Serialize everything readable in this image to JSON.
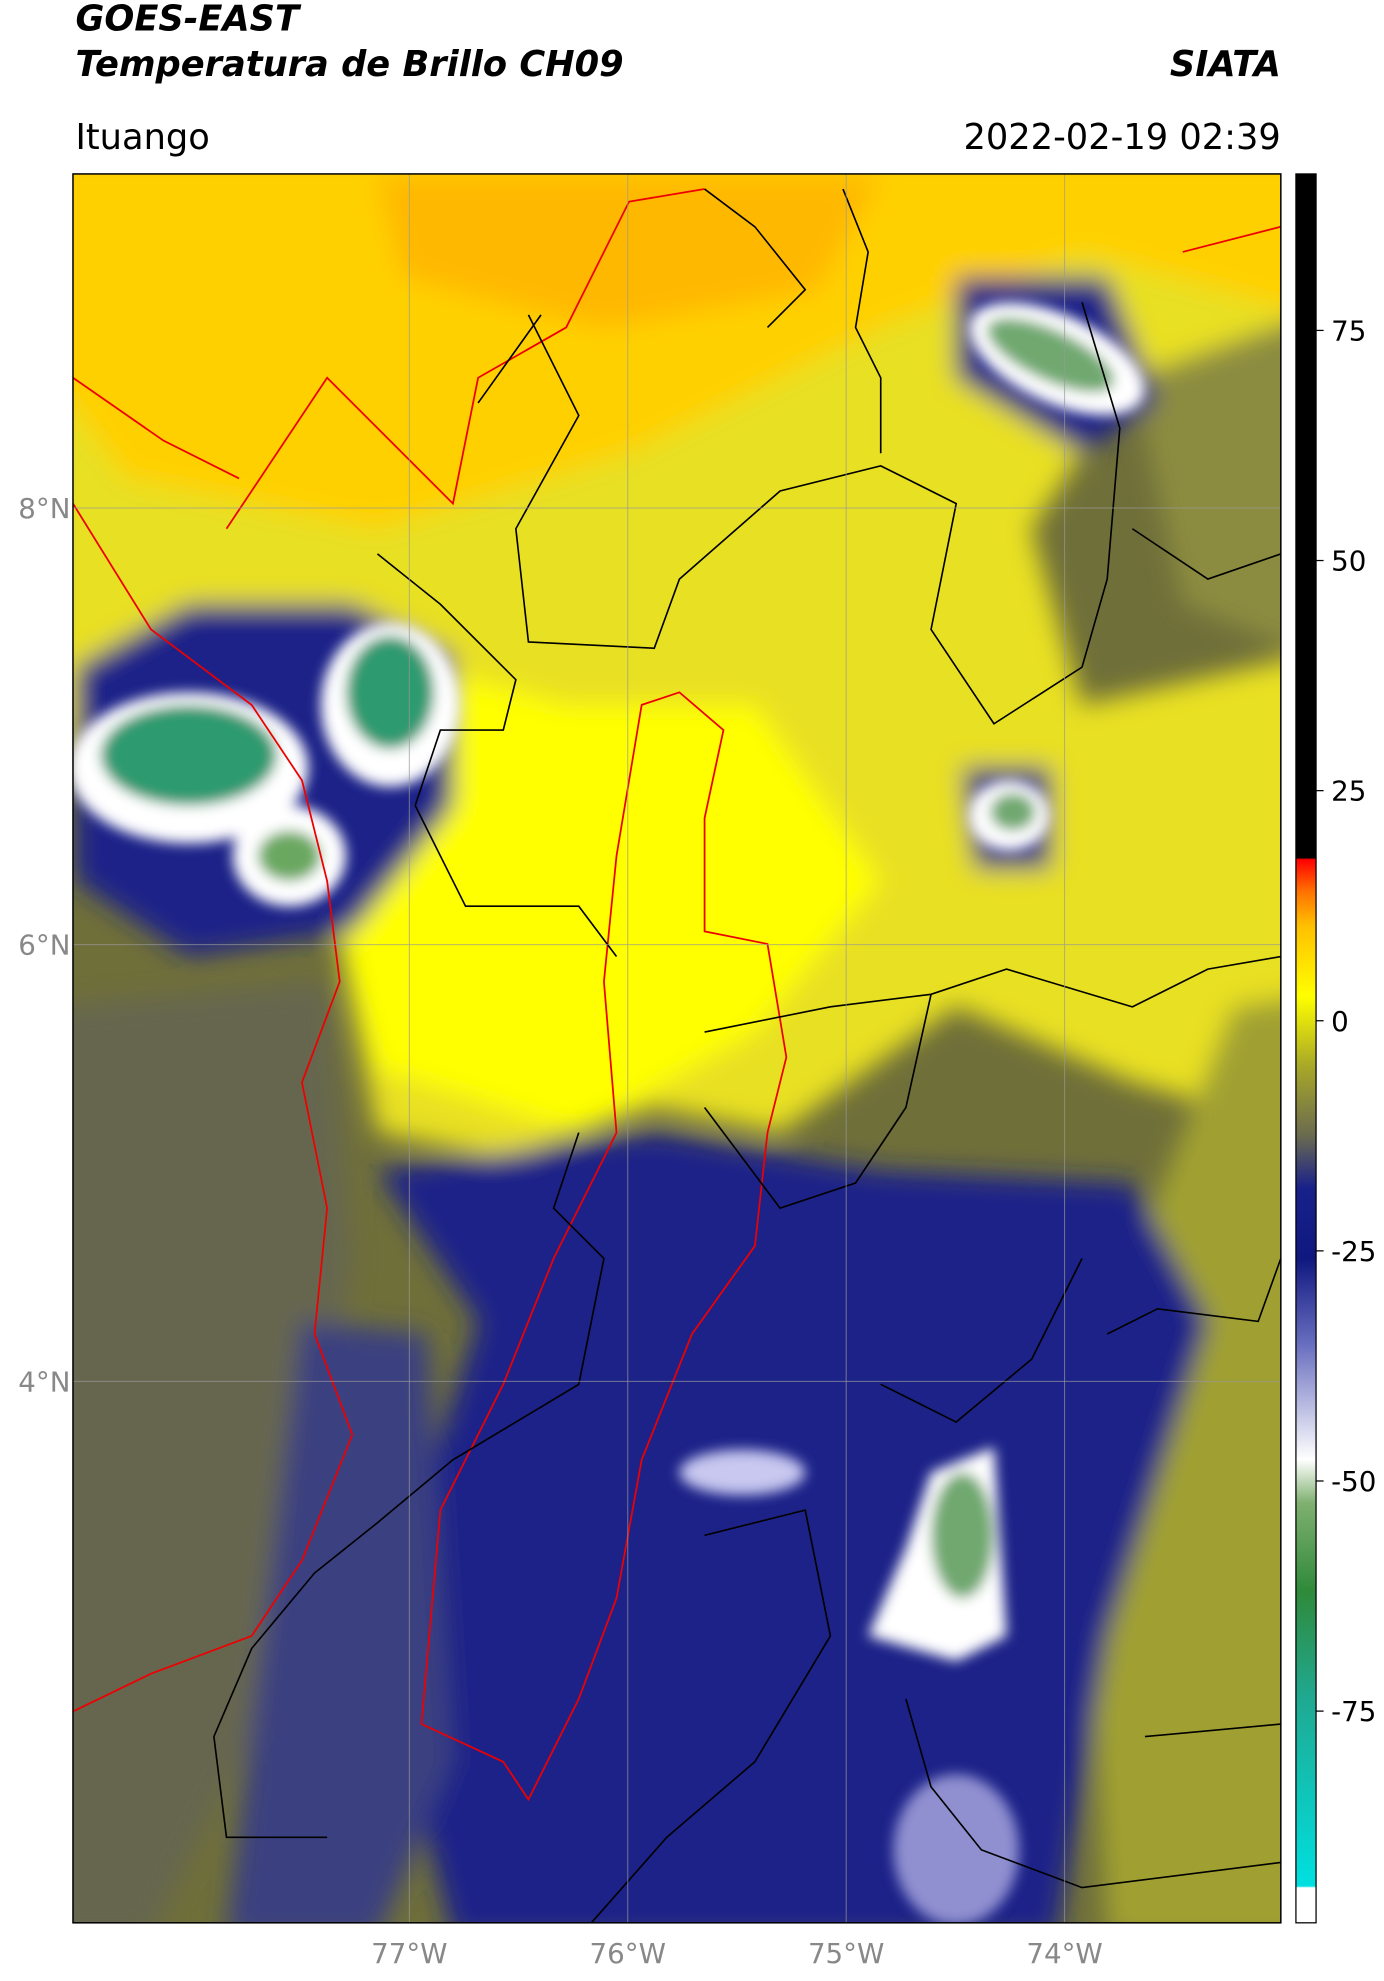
{
  "header": {
    "title": "GOES-EAST",
    "subtitle": "Temperatura de Brillo CH09",
    "brand": "SIATA",
    "location": "Ituango",
    "datetime": "2022-02-19 02:39"
  },
  "map": {
    "xlim": [
      -78.54,
      -73.01
    ],
    "ylim": [
      1.52,
      9.53
    ],
    "xticks": [
      {
        "value": -77,
        "label": "77°W"
      },
      {
        "value": -76,
        "label": "76°W"
      },
      {
        "value": -75,
        "label": "75°W"
      },
      {
        "value": -74,
        "label": "74°W"
      }
    ],
    "yticks": [
      {
        "value": 4,
        "label": "4°N"
      },
      {
        "value": 6,
        "label": "6°N"
      },
      {
        "value": 8,
        "label": "8°N"
      }
    ],
    "grid": true
  },
  "colorbar": {
    "lim": [
      -98,
      92
    ],
    "ticks": [
      -75,
      -50,
      -25,
      0,
      25,
      50,
      75
    ]
  }
}
